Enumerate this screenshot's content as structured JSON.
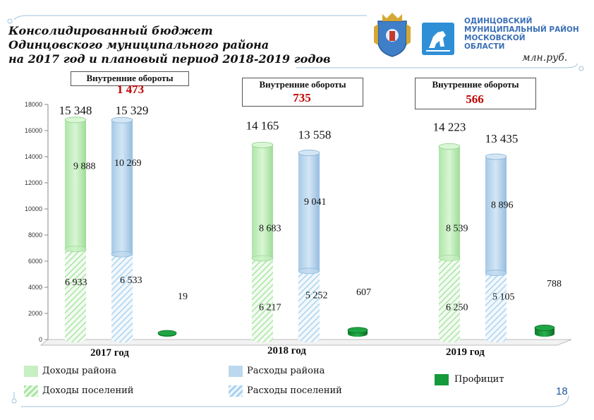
{
  "header": {
    "title_lines": [
      "Консолидированный бюджет",
      "Одинцовского муниципального района",
      "на 2017 год и плановый период 2018-2019 годов"
    ],
    "unit": "млн.руб.",
    "org_lines": [
      "ОДИНЦОВСКИЙ",
      "МУНИЦИПАЛЬНЫЙ РАЙОН",
      "МОСКОВСКОЙ",
      "ОБЛАСТИ"
    ],
    "page_number": "18"
  },
  "internal_turnover": [
    {
      "label": "Внутренние обороты",
      "value": "1 473"
    },
    {
      "label": "Внутренние обороты",
      "value": "735"
    },
    {
      "label": "Внутренние обороты",
      "value": "566"
    }
  ],
  "legend": {
    "district_income": "Доходы района",
    "settlement_income": "Доходы поселений",
    "district_expense": "Расходы района",
    "settlement_expense": "Расходы поселений",
    "surplus": "Профицит"
  },
  "colors": {
    "income_fill": "#c6f0c2",
    "income_hatch": "#a7e7a0",
    "expense_fill": "#bcd8ee",
    "expense_hatch": "#a9d3f0",
    "surplus": "#149a3a",
    "accent_red": "#c00000"
  },
  "chart_data": {
    "type": "bar",
    "ylim": [
      0,
      18000
    ],
    "y_ticks": [
      "0",
      "2000",
      "4000",
      "6000",
      "8000",
      "10000",
      "12000",
      "14000",
      "16000",
      "18000"
    ],
    "categories": [
      "2017 год",
      "2018 год",
      "2019 год"
    ],
    "series": [
      {
        "name": "Доходы района",
        "values": [
          9888,
          8683,
          8539
        ],
        "labels": [
          "9 888",
          "8 683",
          "8 539"
        ]
      },
      {
        "name": "Доходы поселений",
        "values": [
          6933,
          6217,
          6250
        ],
        "labels": [
          "6 933",
          "6 217",
          "6 250"
        ]
      },
      {
        "name": "Расходы района",
        "values": [
          10269,
          9041,
          8896
        ],
        "labels": [
          "10 269",
          "9 041",
          "8 896"
        ]
      },
      {
        "name": "Расходы поселений",
        "values": [
          6533,
          5252,
          5105
        ],
        "labels": [
          "6 533",
          "5 252",
          "5 105"
        ]
      },
      {
        "name": "Профицит",
        "values": [
          19,
          607,
          788
        ],
        "labels": [
          "19",
          "607",
          "788"
        ]
      }
    ],
    "totals": {
      "income": [
        15348,
        14165,
        14223
      ],
      "income_labels": [
        "15 348",
        "14 165",
        "14 223"
      ],
      "expense": [
        15329,
        13558,
        13435
      ],
      "expense_labels": [
        "15 329",
        "13 558",
        "13 435"
      ]
    }
  }
}
